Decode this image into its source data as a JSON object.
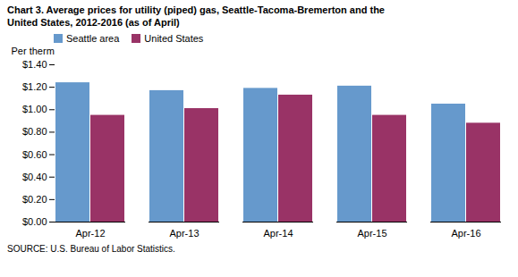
{
  "chart_data": {
    "type": "bar",
    "title": "Chart 3. Average prices for utility (piped) gas, Seattle-Tacoma-Bremerton and the",
    "subtitle": "United States, 2012-2016  (as of April)",
    "ylabel": "Per therm",
    "source": "SOURCE: U.S. Bureau of Labor Statistics.",
    "categories": [
      "Apr-12",
      "Apr-13",
      "Apr-14",
      "Apr-15",
      "Apr-16"
    ],
    "series": [
      {
        "name": "Seattle area",
        "color": "#6699CC",
        "values": [
          1.24,
          1.17,
          1.19,
          1.21,
          1.05
        ]
      },
      {
        "name": "United States",
        "color": "#993366",
        "values": [
          0.95,
          1.01,
          1.13,
          0.95,
          0.88
        ]
      }
    ],
    "ylim": [
      0,
      1.4
    ],
    "yticks": [
      {
        "value": 0.0,
        "label": "$0.00"
      },
      {
        "value": 0.2,
        "label": "$0.20"
      },
      {
        "value": 0.4,
        "label": "$0.40"
      },
      {
        "value": 0.6,
        "label": "$0.60"
      },
      {
        "value": 0.8,
        "label": "$0.80"
      },
      {
        "value": 1.0,
        "label": "$1.00"
      },
      {
        "value": 1.2,
        "label": "$1.20"
      },
      {
        "value": 1.4,
        "label": "$1.40"
      }
    ],
    "legend": "upper left",
    "grid": false
  }
}
